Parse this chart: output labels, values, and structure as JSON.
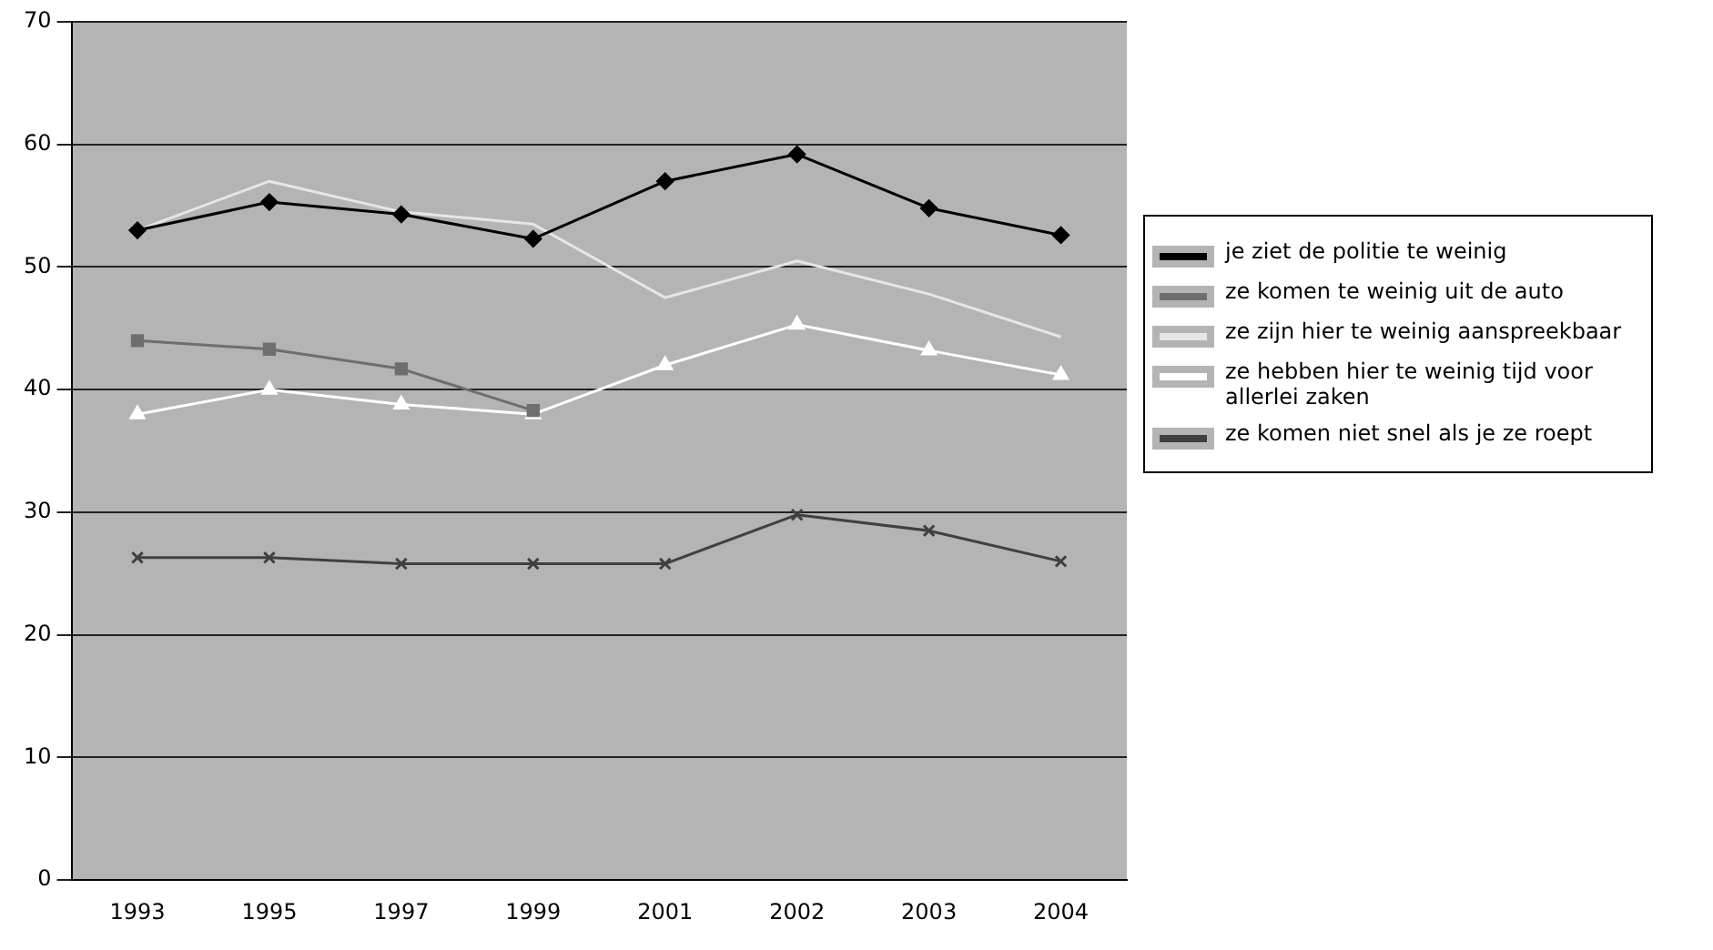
{
  "chart_data": {
    "type": "line",
    "categories": [
      "1993",
      "1995",
      "1997",
      "1999",
      "2001",
      "2002",
      "2003",
      "2004"
    ],
    "series": [
      {
        "name": "je ziet de politie te weinig",
        "color": "#000000",
        "marker": "diamond",
        "values": [
          53,
          55.3,
          54.3,
          52.3,
          57,
          59.2,
          54.8,
          52.6
        ]
      },
      {
        "name": "ze komen te weinig uit de auto",
        "color": "#6e6e6e",
        "marker": "square",
        "values": [
          44,
          43.3,
          41.7,
          38.3,
          null,
          null,
          null,
          null
        ]
      },
      {
        "name": "ze zijn hier te weinig aanspreekbaar",
        "color": "#e6e6e6",
        "marker": "none",
        "values": [
          53,
          57,
          54.5,
          53.5,
          47.5,
          50.5,
          47.8,
          44.3
        ]
      },
      {
        "name": "ze hebben hier te weinig tijd voor allerlei zaken",
        "color": "#ffffff",
        "marker": "triangle",
        "values": [
          38,
          40,
          38.8,
          38,
          42,
          45.3,
          43.2,
          41.2
        ]
      },
      {
        "name": "ze komen niet snel als je ze roept",
        "color": "#404040",
        "marker": "cross",
        "values": [
          26.3,
          26.3,
          25.8,
          25.8,
          25.8,
          29.8,
          28.5,
          26
        ]
      }
    ],
    "ylim": [
      0,
      70
    ],
    "yticks": [
      0,
      10,
      20,
      30,
      40,
      50,
      60,
      70
    ],
    "grid": "y",
    "legend": "right"
  }
}
